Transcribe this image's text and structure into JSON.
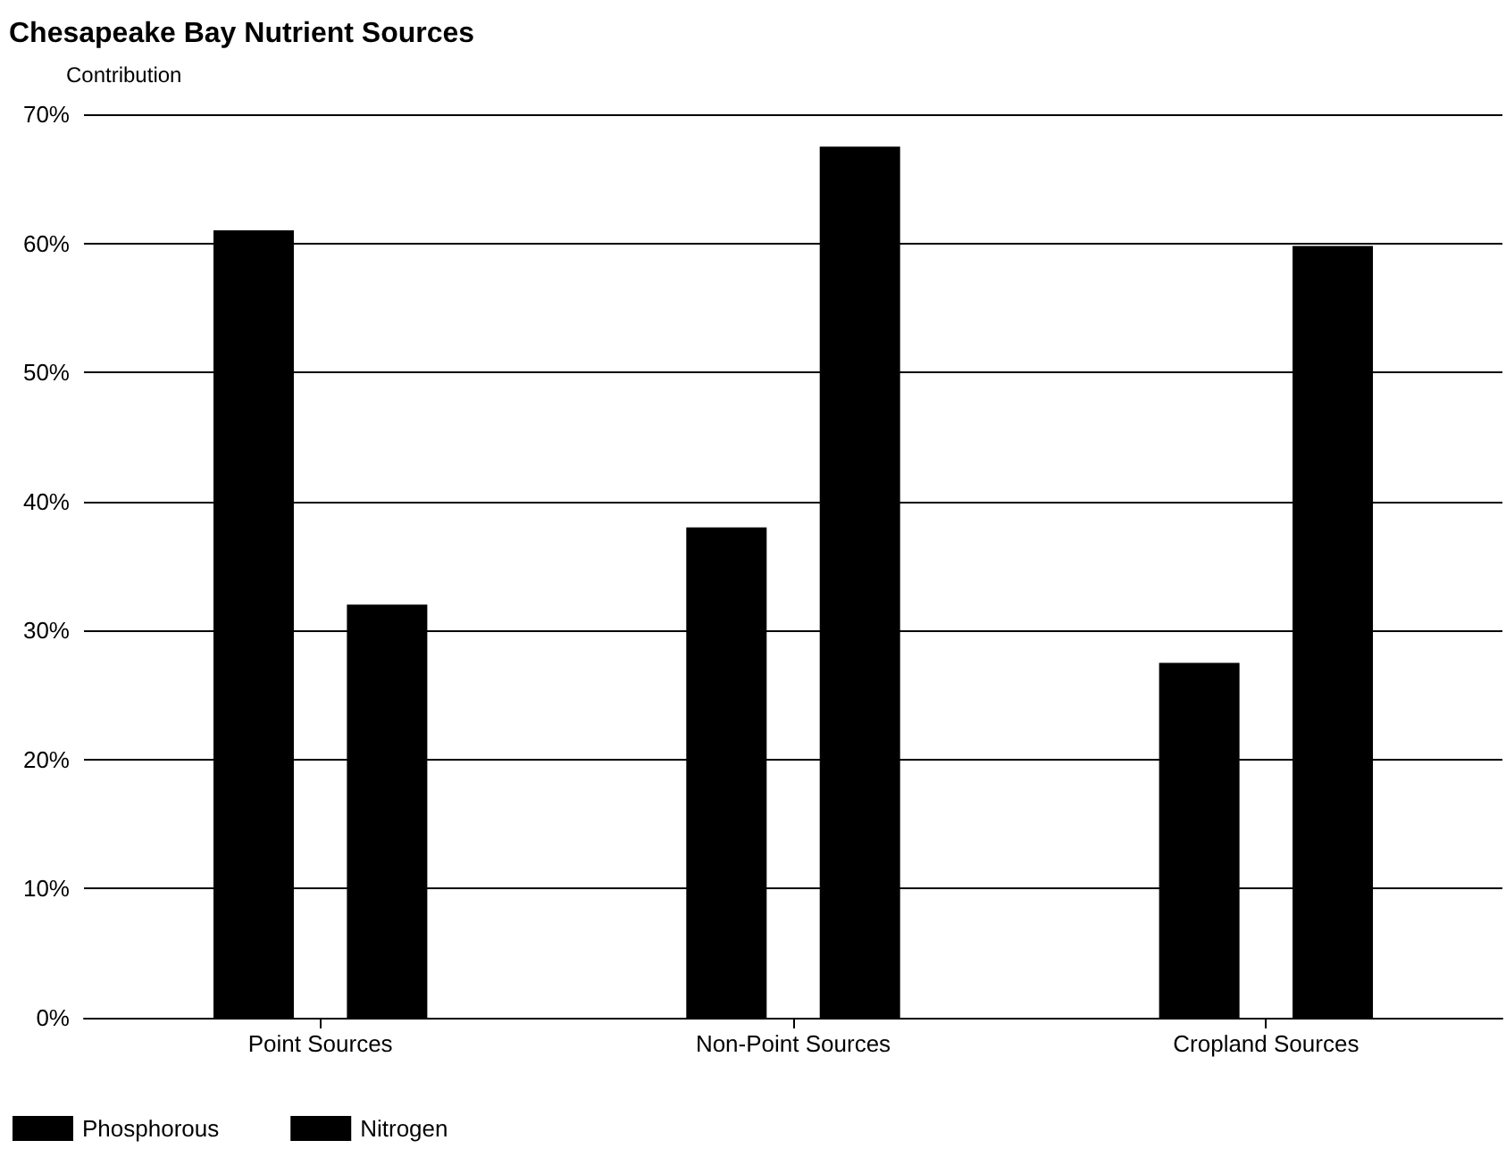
{
  "chart_data": {
    "type": "bar",
    "title": "Chesapeake Bay Nutrient Sources",
    "ylabel": "Contribution",
    "categories": [
      "Point Sources",
      "Non-Point Sources",
      "Cropland Sources"
    ],
    "series": [
      {
        "name": "Phosphorous",
        "color": "#000000",
        "values": [
          61,
          38,
          27.5
        ]
      },
      {
        "name": "Nitrogen",
        "color": "#000000",
        "values": [
          32,
          67.5,
          59.8
        ]
      }
    ],
    "ylim": [
      0,
      70
    ],
    "yticks": [
      {
        "value": 0,
        "label": "0%"
      },
      {
        "value": 10,
        "label": "10%"
      },
      {
        "value": 20,
        "label": "20%"
      },
      {
        "value": 30,
        "label": "30%"
      },
      {
        "value": 40,
        "label": "40%"
      },
      {
        "value": 50,
        "label": "50%"
      },
      {
        "value": 60,
        "label": "60%"
      },
      {
        "value": 70,
        "label": "70%"
      }
    ],
    "grid": "y",
    "legend": "bottom left"
  }
}
